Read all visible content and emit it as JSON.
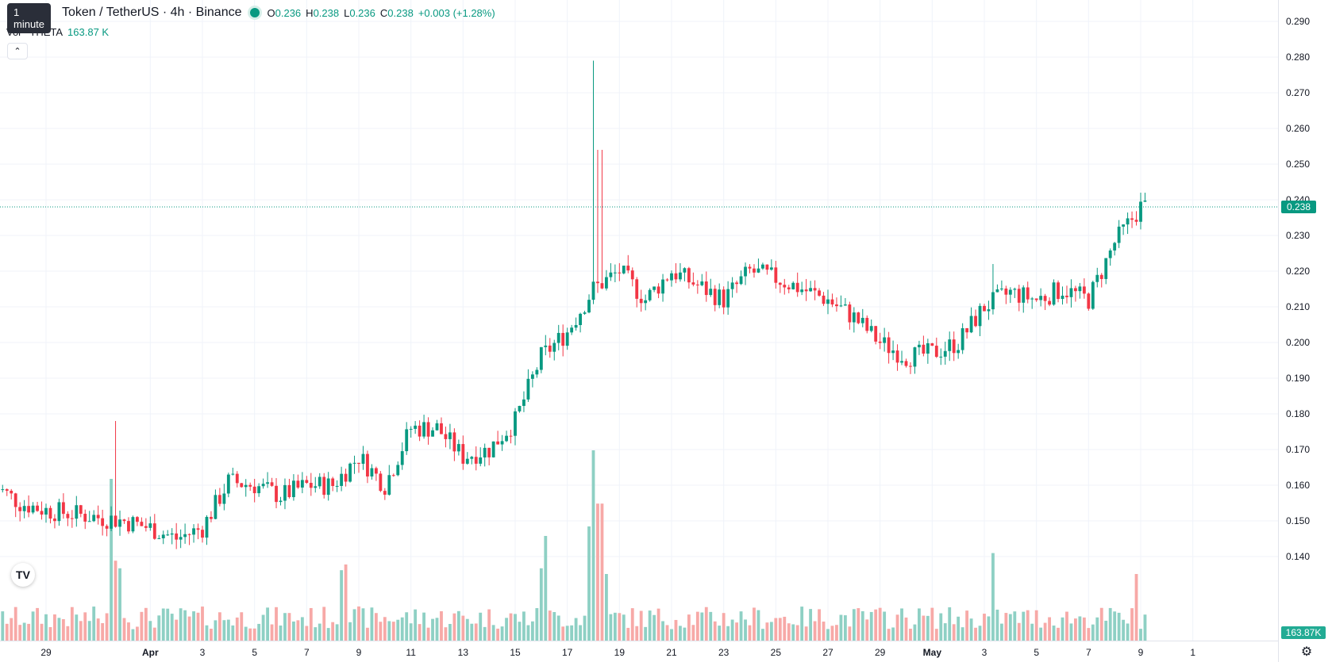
{
  "header": {
    "tooltip": "1 minute",
    "symbol": "Token / TetherUS · 4h · Binance",
    "ohlc": {
      "o_label": "O",
      "o": "0.236",
      "h_label": "H",
      "h": "0.238",
      "l_label": "L",
      "l": "0.236",
      "c_label": "C",
      "c": "0.238",
      "change": "+0.003 (+1.28%)"
    },
    "volume_label": "Vol · THETA",
    "volume_value": "163.87 K"
  },
  "colors": {
    "up": "#089981",
    "down": "#f23645",
    "vol_up": "#8ed0c4",
    "vol_down": "#f7a9a7",
    "grid": "#f0f3fa"
  },
  "icons": {
    "collapse": "chevron-up-icon",
    "logo": "tradingview-logo-icon",
    "settings": "gear-icon"
  },
  "chart_data": {
    "type": "candlestick",
    "price_axis": {
      "ticks": [
        "0.290",
        "0.280",
        "0.270",
        "0.260",
        "0.250",
        "0.240",
        "0.230",
        "0.220",
        "0.210",
        "0.200",
        "0.190",
        "0.180",
        "0.170",
        "0.160",
        "0.150",
        "0.140"
      ],
      "range": [
        0.131,
        0.2955
      ]
    },
    "time_axis": {
      "ticks": [
        "29",
        "Apr",
        "3",
        "5",
        "7",
        "9",
        "11",
        "13",
        "15",
        "17",
        "19",
        "21",
        "23",
        "25",
        "27",
        "29",
        "May",
        "3",
        "5",
        "7",
        "9",
        "1"
      ],
      "tick_day_index": [
        2,
        6,
        8,
        10,
        12,
        14,
        16,
        18,
        20,
        22,
        24,
        26,
        28,
        30,
        32,
        34,
        36,
        38,
        40,
        42,
        44,
        46
      ]
    },
    "last_price": "0.238",
    "last_volume": "163.87K",
    "anchors": [
      [
        0,
        0.16
      ],
      [
        1,
        0.155
      ],
      [
        2,
        0.153
      ],
      [
        3,
        0.152
      ],
      [
        4,
        0.151
      ],
      [
        5,
        0.15
      ],
      [
        6,
        0.148
      ],
      [
        7,
        0.145
      ],
      [
        8,
        0.148
      ],
      [
        9,
        0.161
      ],
      [
        10,
        0.16
      ],
      [
        11,
        0.157
      ],
      [
        12,
        0.16
      ],
      [
        13,
        0.16
      ],
      [
        14,
        0.168
      ],
      [
        15,
        0.16
      ],
      [
        16,
        0.176
      ],
      [
        17,
        0.176
      ],
      [
        18,
        0.168
      ],
      [
        19,
        0.17
      ],
      [
        20,
        0.178
      ],
      [
        21,
        0.196
      ],
      [
        22,
        0.203
      ],
      [
        23,
        0.215
      ],
      [
        24,
        0.22
      ],
      [
        25,
        0.212
      ],
      [
        26,
        0.22
      ],
      [
        27,
        0.216
      ],
      [
        28,
        0.212
      ],
      [
        29,
        0.22
      ],
      [
        30,
        0.218
      ],
      [
        31,
        0.215
      ],
      [
        32,
        0.212
      ],
      [
        33,
        0.207
      ],
      [
        34,
        0.2
      ],
      [
        35,
        0.196
      ],
      [
        36,
        0.197
      ],
      [
        37,
        0.2
      ],
      [
        38,
        0.21
      ],
      [
        39,
        0.214
      ],
      [
        40,
        0.212
      ],
      [
        41,
        0.215
      ],
      [
        42,
        0.212
      ],
      [
        43,
        0.228
      ],
      [
        44,
        0.238
      ]
    ],
    "spikes": [
      {
        "day": 4.7,
        "high": 0.178
      },
      {
        "day": 22.3,
        "high": 0.207
      },
      {
        "day": 23.05,
        "high": 0.279
      },
      {
        "day": 23.25,
        "high": 0.254
      },
      {
        "day": 38.3,
        "high": 0.222
      },
      {
        "day": 44.0,
        "high": 0.242
      }
    ],
    "volume_spikes": [
      {
        "day": 4.5,
        "vol": 0.85
      },
      {
        "day": 4.75,
        "vol": 0.42
      },
      {
        "day": 4.85,
        "vol": 0.38
      },
      {
        "day": 21.0,
        "vol": 0.38
      },
      {
        "day": 21.2,
        "vol": 0.55
      },
      {
        "day": 22.9,
        "vol": 0.6
      },
      {
        "day": 23.05,
        "vol": 1.0
      },
      {
        "day": 23.25,
        "vol": 0.72
      },
      {
        "day": 23.45,
        "vol": 0.35
      },
      {
        "day": 13.3,
        "vol": 0.37
      },
      {
        "day": 13.55,
        "vol": 0.4
      },
      {
        "day": 38.3,
        "vol": 0.46
      },
      {
        "day": 43.9,
        "vol": 0.35
      }
    ]
  }
}
